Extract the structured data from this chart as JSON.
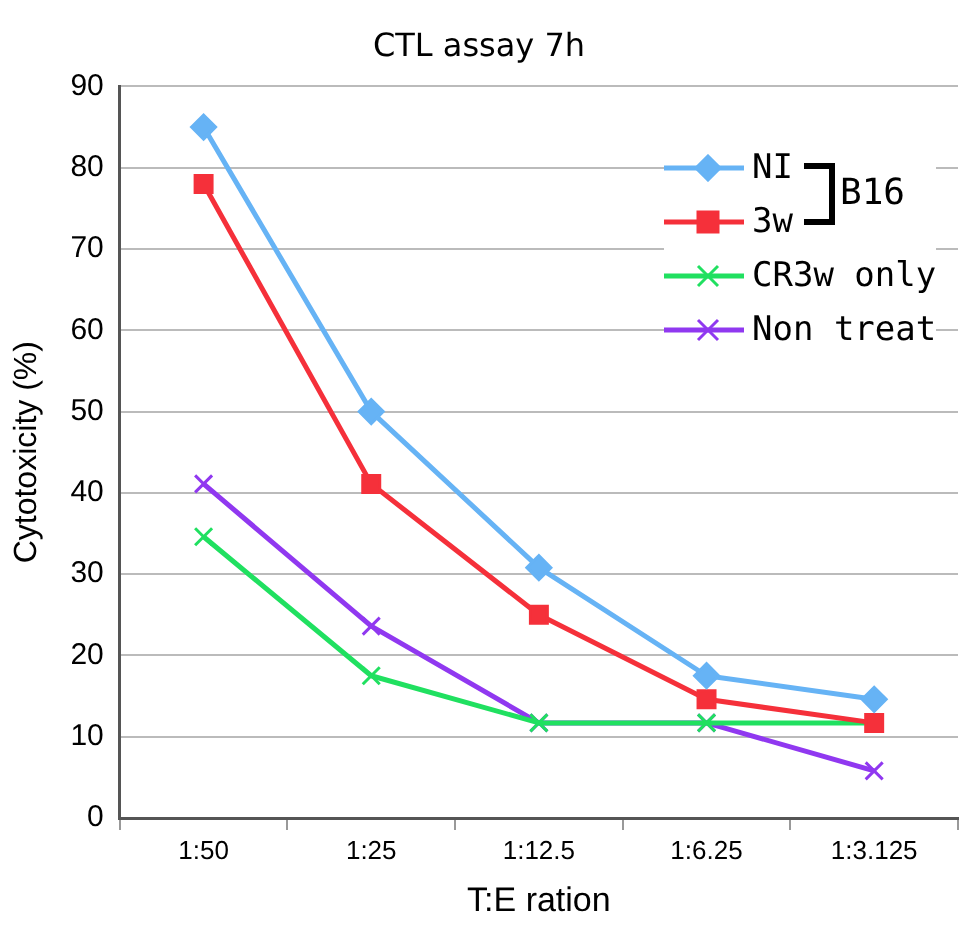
{
  "chart_data": {
    "type": "line",
    "title": "CTL assay 7h",
    "xlabel": "T:E ration",
    "ylabel": "Cytotoxicity (%)",
    "categories": [
      "1:50",
      "1:25",
      "1:12.5",
      "1:6.25",
      "1:3.125"
    ],
    "series": [
      {
        "name": "NI",
        "color": "#66b3f5",
        "marker": "diamond",
        "values": [
          85,
          50,
          30.8,
          17.5,
          14.6
        ]
      },
      {
        "name": "3w",
        "color": "#f5303a",
        "marker": "square",
        "values": [
          78,
          41.1,
          25,
          14.6,
          11.7
        ]
      },
      {
        "name": "CR3w only",
        "color": "#20e060",
        "marker": "cross",
        "values": [
          34.6,
          17.5,
          11.7,
          11.7,
          11.7
        ]
      },
      {
        "name": "Non treat",
        "color": "#9038f0",
        "marker": "cross",
        "values": [
          41.1,
          23.6,
          11.7,
          11.7,
          5.8
        ]
      }
    ],
    "ylim": [
      0,
      90
    ],
    "yticks": [
      0,
      10,
      20,
      30,
      40,
      50,
      60,
      70,
      80,
      90
    ],
    "grid": "y",
    "legend": "top right",
    "line_style": "solid",
    "annotations": [
      "B16"
    ]
  }
}
